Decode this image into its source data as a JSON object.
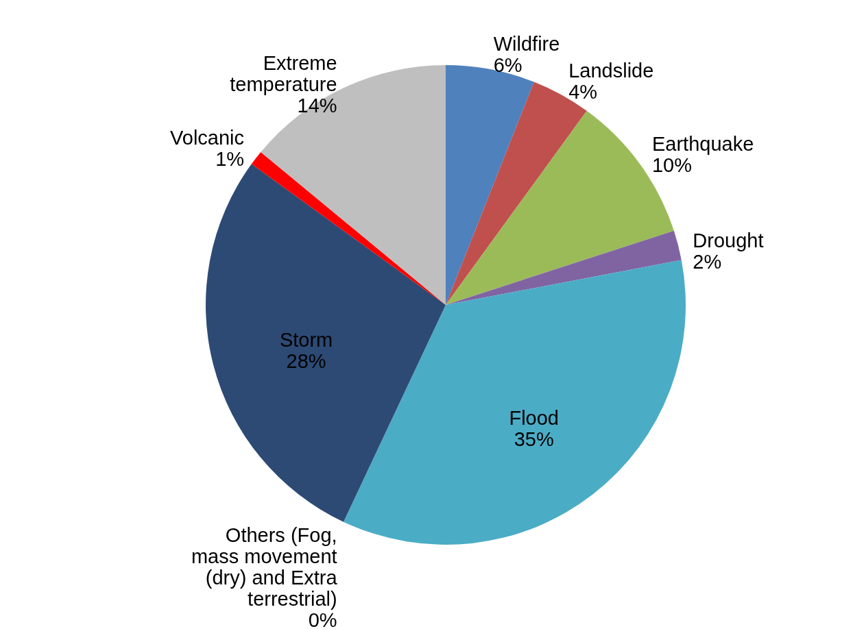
{
  "chart_data": {
    "type": "pie",
    "categories": [
      "Wildfire",
      "Landslide",
      "Earthquake",
      "Drought",
      "Flood",
      "Others (Fog, mass movement (dry) and Extra terrestrial)",
      "Storm",
      "Volcanic",
      "Extreme temperature"
    ],
    "values": [
      6,
      4,
      10,
      2,
      35,
      0,
      28,
      1,
      14
    ],
    "value_labels": [
      "6%",
      "4%",
      "10%",
      "2%",
      "35%",
      "0%",
      "28%",
      "1%",
      "14%"
    ],
    "colors": [
      "#4f81bd",
      "#c0504d",
      "#9bbb59",
      "#8064a2",
      "#4bacc6",
      "#f79646",
      "#2c4a74",
      "#ff0000",
      "#bfbfbf"
    ]
  }
}
